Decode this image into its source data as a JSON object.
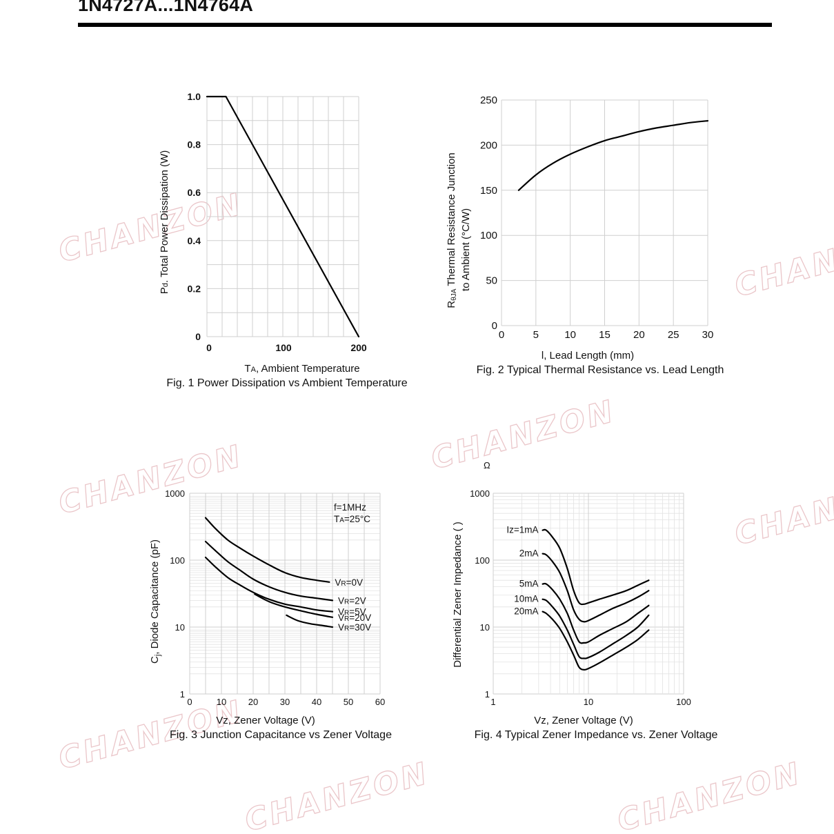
{
  "header": {
    "title": "1N4727A...1N4764A"
  },
  "watermark": {
    "text": "CHANZON",
    "color": "#e4b3b8"
  },
  "chart_data": [
    {
      "id": "fig1",
      "type": "line",
      "caption": "Fig. 1 Power Dissipation vs Ambient Temperature",
      "xlabel": "TA, Ambient Temperature",
      "ylabel": "Pd. Total Power Dissipation (W)",
      "xlim": [
        0,
        200
      ],
      "ylim": [
        0,
        1.0
      ],
      "x_ticks": [
        "0",
        "100",
        "200"
      ],
      "y_ticks": [
        "0",
        "0.2",
        "0.4",
        "0.6",
        "0.8",
        "1.0"
      ],
      "grid": true,
      "series": [
        {
          "x": [
            0,
            25,
            200
          ],
          "y": [
            1.0,
            1.0,
            0
          ]
        }
      ]
    },
    {
      "id": "fig2",
      "type": "line",
      "caption": "Fig. 2 Typical Thermal Resistance vs. Lead Length",
      "xlabel": "l, Lead Length (mm)",
      "ylabel_lines": [
        "RθJA  Thermal Resistance Junction",
        "to Ambient (°C/W)"
      ],
      "xlim": [
        0,
        30
      ],
      "ylim": [
        0,
        250
      ],
      "x_ticks": [
        "0",
        "5",
        "10",
        "15",
        "20",
        "25",
        "30"
      ],
      "y_ticks": [
        "0",
        "50",
        "100",
        "150",
        "200",
        "250"
      ],
      "grid": true,
      "series": [
        {
          "x": [
            2.5,
            5,
            7.5,
            10,
            12.5,
            15,
            17.5,
            20,
            22.5,
            25,
            27.5,
            30
          ],
          "y": [
            150,
            167,
            180,
            190,
            198,
            205,
            210,
            215,
            219,
            222,
            225,
            227
          ]
        }
      ]
    },
    {
      "id": "fig3",
      "type": "line",
      "caption": "Fig. 3 Junction Capacitance vs Zener Voltage",
      "xlabel": "Vz, Zener Voltage (V)",
      "ylabel": "Cj, Diode Capacitance (pF)",
      "xlim": [
        0,
        60
      ],
      "ylim": [
        1,
        1000
      ],
      "yscale": "log",
      "x_ticks": [
        "0",
        "10",
        "20",
        "30",
        "40",
        "50",
        "60"
      ],
      "y_ticks": [
        "1",
        "10",
        "100",
        "1000"
      ],
      "conditions": [
        "f=1MHz",
        "TA=25°C"
      ],
      "grid": true,
      "series": [
        {
          "name": "VR=0V",
          "x": [
            5,
            8,
            12,
            16,
            20,
            25,
            30,
            35,
            40,
            44
          ],
          "y": [
            430,
            300,
            200,
            150,
            115,
            85,
            65,
            55,
            50,
            47
          ]
        },
        {
          "name": "VR=2V",
          "x": [
            5,
            8,
            12,
            16,
            20,
            25,
            30,
            35,
            40,
            45
          ],
          "y": [
            190,
            140,
            95,
            70,
            52,
            40,
            33,
            29,
            27,
            25
          ]
        },
        {
          "name": "VR=5V",
          "x": [
            5,
            8,
            12,
            16,
            20,
            25,
            30,
            35,
            40,
            45
          ],
          "y": [
            110,
            80,
            55,
            42,
            33,
            26,
            22,
            20,
            18,
            17
          ]
        },
        {
          "name": "VR=20V",
          "x": [
            20.5,
            25,
            30,
            35,
            40,
            45
          ],
          "y": [
            31,
            24,
            20,
            17.5,
            15.5,
            14
          ]
        },
        {
          "name": "VR=30V",
          "x": [
            30.5,
            34,
            38,
            42,
            45
          ],
          "y": [
            15,
            12.5,
            11.2,
            10.5,
            10
          ]
        }
      ]
    },
    {
      "id": "fig4",
      "type": "line",
      "caption": "Fig. 4 Typical Zener Impedance vs. Zener Voltage",
      "xlabel": "Vz, Zener Voltage (V)",
      "ylabel": "Differential Zener Impedance ( )",
      "xlim": [
        1,
        100
      ],
      "ylim": [
        1,
        1000
      ],
      "xscale": "log",
      "yscale": "log",
      "x_ticks": [
        "1",
        "10",
        "100"
      ],
      "y_ticks": [
        "1",
        "10",
        "100",
        "1000"
      ],
      "stray_label": "Ω",
      "grid": true,
      "series": [
        {
          "name": "Iz=1mA",
          "x": [
            3.3,
            3.6,
            4.2,
            5.0,
            6.0,
            7.0,
            8.0,
            9.0,
            10,
            13,
            18,
            25,
            33,
            43
          ],
          "y": [
            280,
            280,
            220,
            150,
            75,
            35,
            23,
            22,
            23,
            26,
            30,
            35,
            42,
            50
          ]
        },
        {
          "name": "2mA",
          "x": [
            3.3,
            3.6,
            4.2,
            5.0,
            6.0,
            7.0,
            8.0,
            9.0,
            10,
            13,
            18,
            25,
            33,
            43
          ],
          "y": [
            125,
            120,
            95,
            65,
            35,
            18,
            13,
            12,
            12.5,
            15,
            19,
            23,
            28,
            35
          ]
        },
        {
          "name": "5mA",
          "x": [
            3.3,
            3.6,
            4.2,
            5.0,
            6.0,
            7.0,
            8.0,
            9.0,
            10,
            13,
            18,
            25,
            33,
            43
          ],
          "y": [
            44,
            44,
            36,
            26,
            16,
            9,
            6,
            5.8,
            6,
            7.5,
            9.5,
            12,
            16,
            21
          ]
        },
        {
          "name": "10mA",
          "x": [
            3.3,
            3.6,
            4.2,
            5.0,
            6.0,
            7.0,
            8.0,
            9.0,
            10,
            13,
            18,
            25,
            33,
            43
          ],
          "y": [
            26,
            25,
            20,
            14.5,
            9,
            5.5,
            3.6,
            3.4,
            3.5,
            4.2,
            5.6,
            7.5,
            10,
            15
          ]
        },
        {
          "name": "20mA",
          "x": [
            3.3,
            3.6,
            4.2,
            5.0,
            6.0,
            7.0,
            8.0,
            9.0,
            10,
            13,
            18,
            25,
            33,
            43
          ],
          "y": [
            17,
            16,
            13,
            9.5,
            6,
            3.8,
            2.5,
            2.3,
            2.4,
            2.9,
            3.8,
            5,
            6.5,
            9
          ]
        }
      ]
    }
  ]
}
